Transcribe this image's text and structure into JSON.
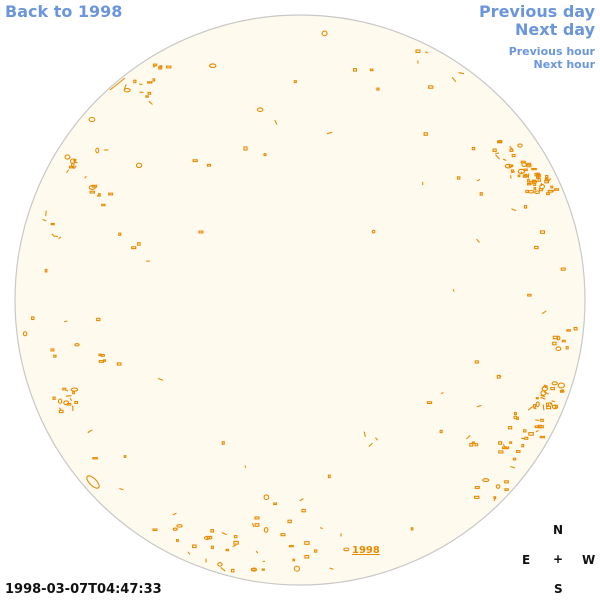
{
  "navigation": {
    "back_label": "Back to 1998",
    "previous_day_label": "Previous day",
    "next_day_label": "Next day",
    "previous_hour_label": "Previous hour",
    "next_hour_label": "Next hour"
  },
  "observation": {
    "timestamp": "1998-03-07T04:47:33",
    "year_marker": "1998"
  },
  "compass": {
    "north": "N",
    "east": "E",
    "center": "+",
    "west": "W",
    "south": "S"
  },
  "colors": {
    "link": "#6b96dc",
    "disc_fill": "#fffaee",
    "disc_stroke": "#c8c8c8",
    "plage": "#e88a00"
  }
}
